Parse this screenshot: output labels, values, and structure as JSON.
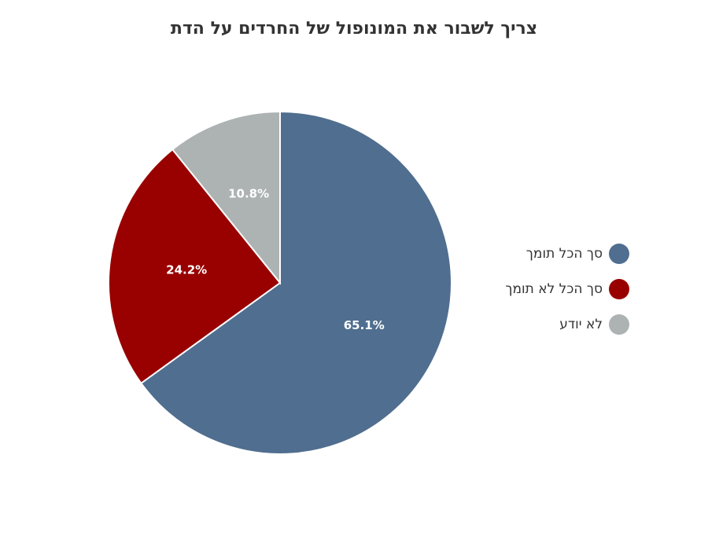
{
  "chart_data": {
    "type": "pie",
    "title": "צריך לשבור את המונופול של החרדים על הדת",
    "slices": [
      {
        "label": "סך הכל תומך",
        "value": 65.1,
        "display": "65.1%",
        "color": "#506e8f"
      },
      {
        "label": "סך הכל לא תומך",
        "value": 24.2,
        "display": "24.2%",
        "color": "#990000"
      },
      {
        "label": "לא יודע",
        "value": 10.8,
        "display": "10.8%",
        "color": "#adb2b3"
      }
    ],
    "legend_position": "right"
  },
  "legend": {
    "items": [
      {
        "label": "סך הכל תומך",
        "color": "#506e8f"
      },
      {
        "label": "סך הכל לא תומך",
        "color": "#990000"
      },
      {
        "label": "לא יודע",
        "color": "#adb2b3"
      }
    ]
  }
}
